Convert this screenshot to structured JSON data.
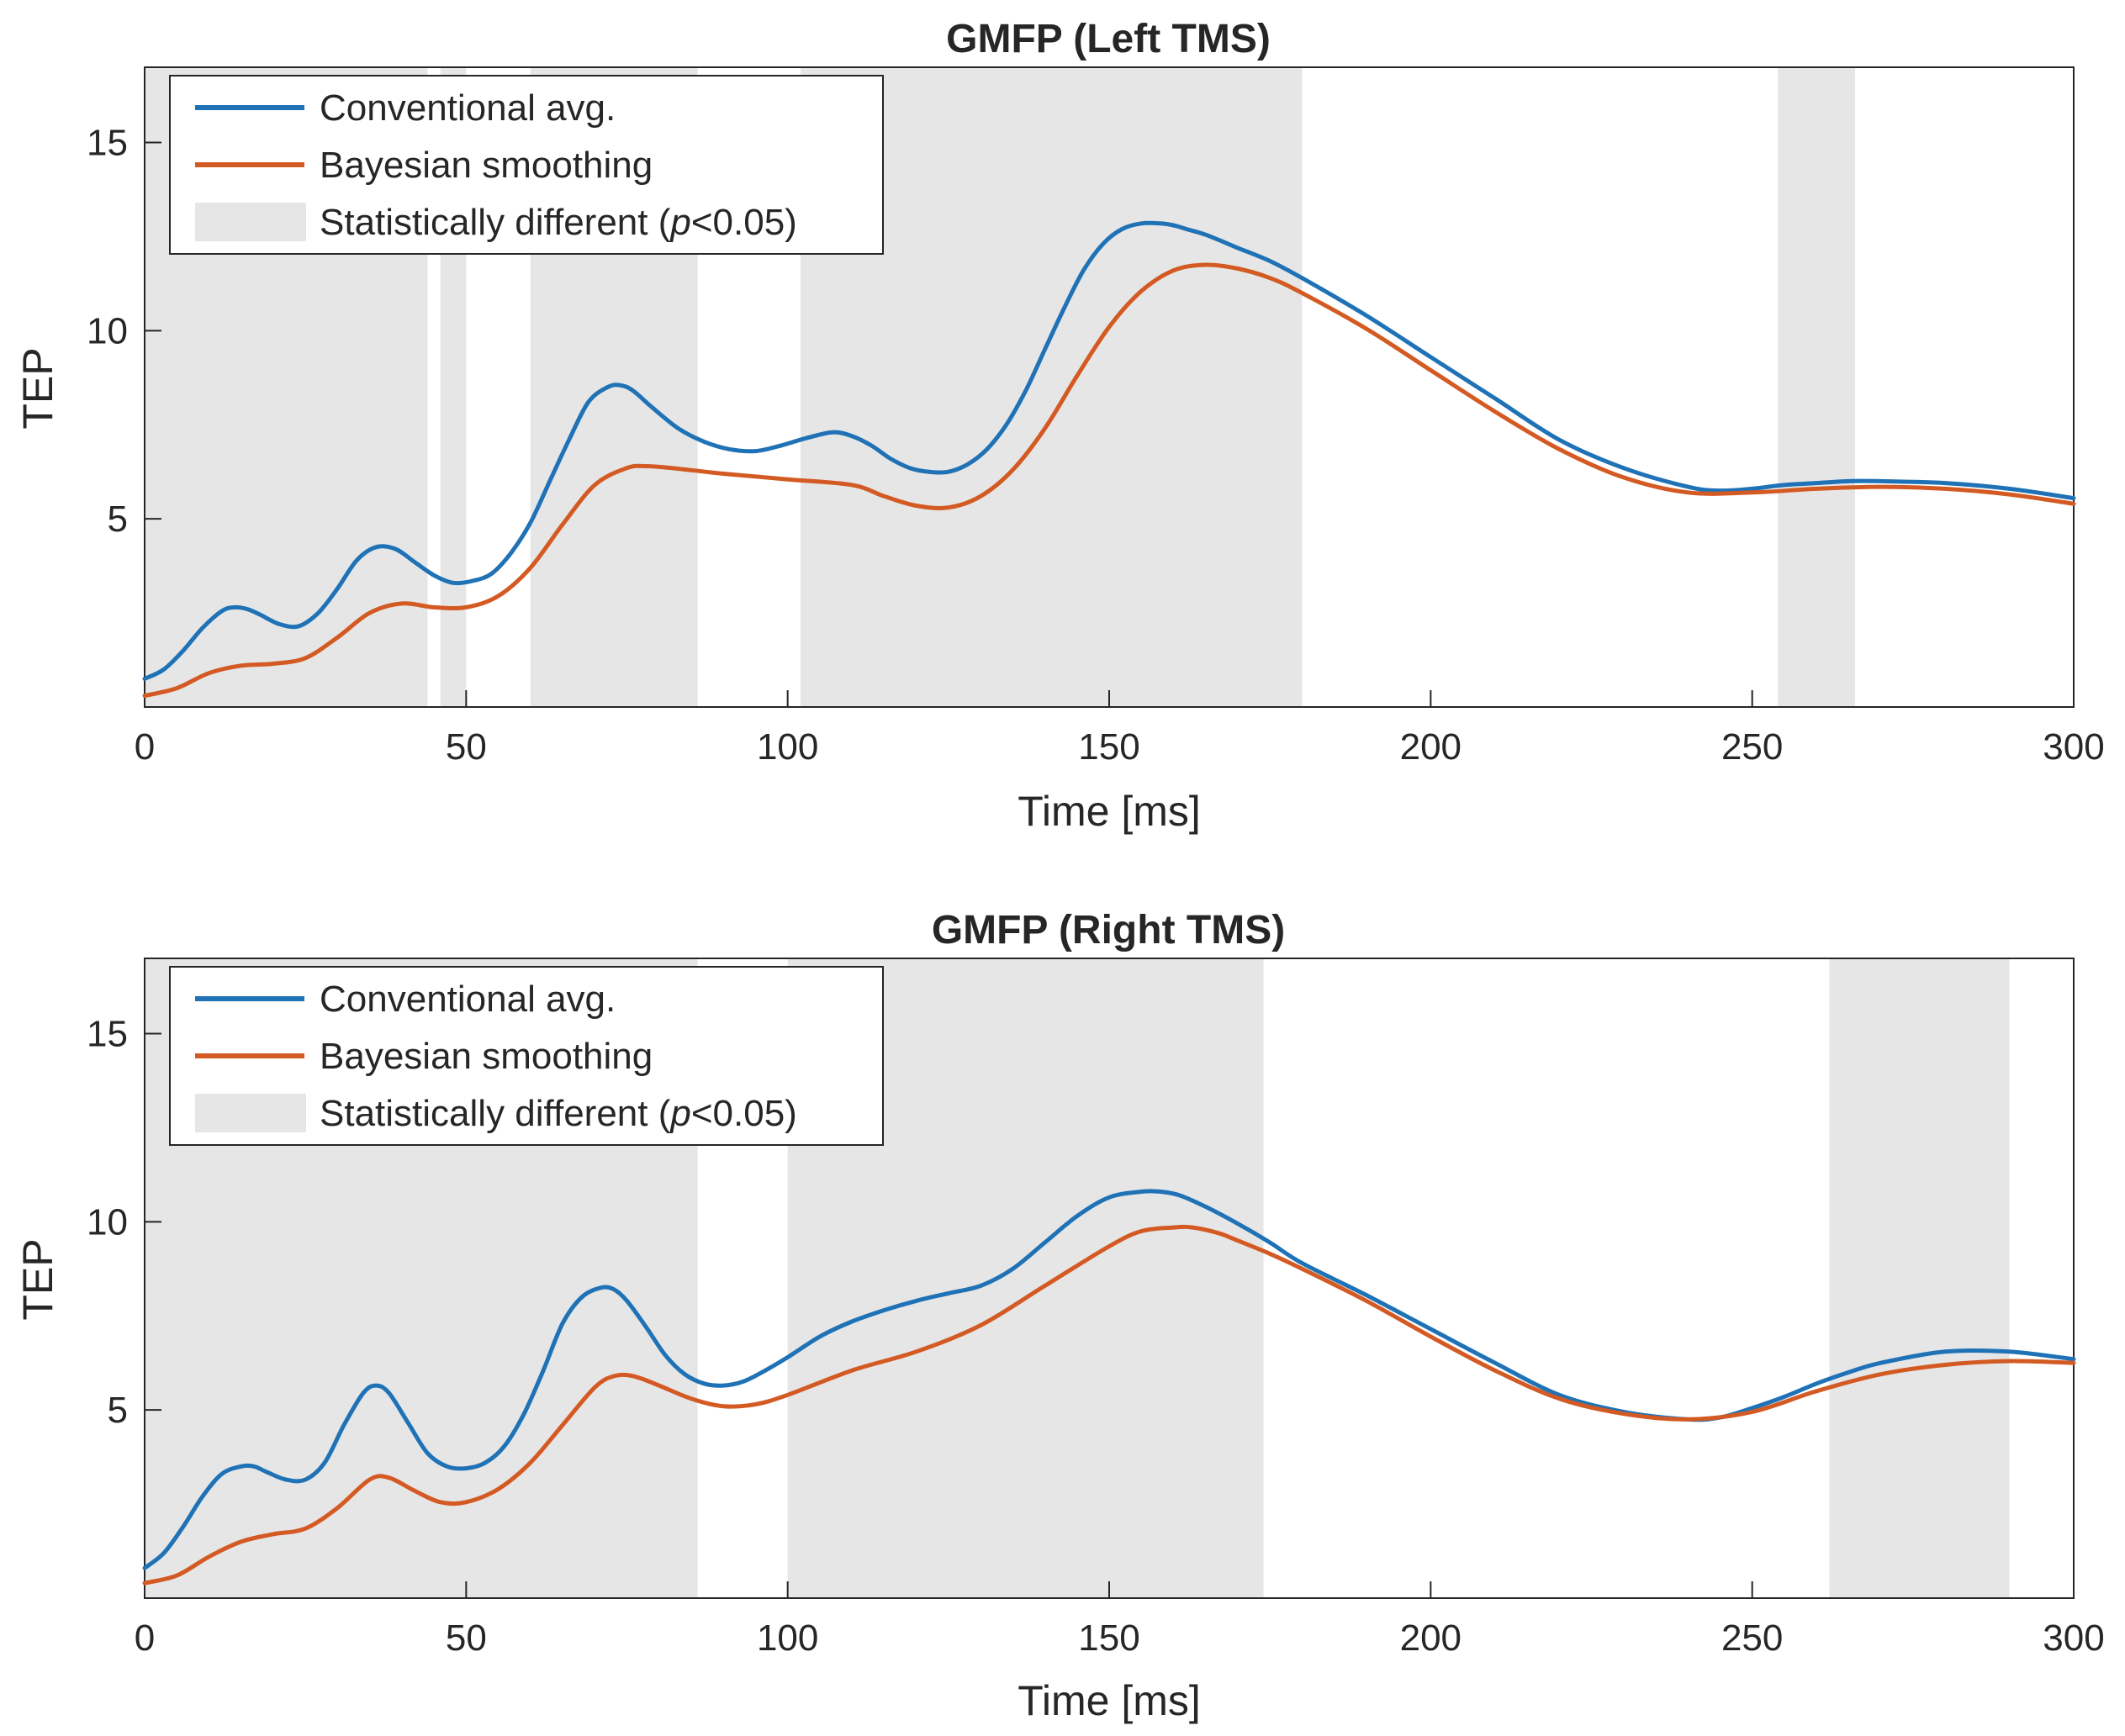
{
  "chart_data": [
    {
      "type": "line",
      "title": "GMFP (Left TMS)",
      "xlabel": "Time [ms]",
      "ylabel": "TEP",
      "xlim": [
        0,
        300
      ],
      "ylim": [
        0,
        17
      ],
      "xticks": [
        "0",
        "50",
        "100",
        "150",
        "200",
        "250",
        "300"
      ],
      "yticks": [
        "5",
        "10",
        "15"
      ],
      "legend": {
        "placement": "top-left",
        "entries": [
          "Conventional avg.",
          "Bayesian smoothing"
        ],
        "shade_label_prefix": "Statistically different (",
        "shade_label_italic": "p",
        "shade_label_suffix": "<0.05)"
      },
      "colors": {
        "conventional": "#1f72b6",
        "bayesian": "#d45a23",
        "shade": "#e6e6e6"
      },
      "significant_intervals": [
        [
          0,
          44
        ],
        [
          46,
          50
        ],
        [
          60,
          86
        ],
        [
          102,
          180
        ],
        [
          254,
          266
        ]
      ],
      "series": [
        {
          "name": "Conventional avg.",
          "x": [
            0,
            3,
            6,
            9,
            12,
            14,
            16,
            18,
            21,
            24,
            27,
            30,
            33,
            36,
            39,
            42,
            45,
            48,
            51,
            54,
            57,
            60,
            63,
            66,
            69,
            72,
            74,
            76,
            79,
            83,
            87,
            91,
            95,
            99,
            103,
            107,
            110,
            113,
            116,
            119,
            122,
            125,
            128,
            131,
            134,
            137,
            140,
            143,
            146,
            149,
            152,
            155,
            158,
            160,
            162,
            165,
            170,
            175,
            180,
            190,
            200,
            210,
            220,
            230,
            240,
            245,
            250,
            255,
            260,
            265,
            270,
            280,
            290,
            300
          ],
          "y": [
            0.75,
            1.0,
            1.5,
            2.1,
            2.55,
            2.65,
            2.6,
            2.45,
            2.2,
            2.15,
            2.5,
            3.15,
            3.9,
            4.25,
            4.2,
            3.85,
            3.5,
            3.3,
            3.35,
            3.55,
            4.1,
            4.9,
            6.0,
            7.1,
            8.1,
            8.5,
            8.55,
            8.4,
            7.95,
            7.4,
            7.05,
            6.85,
            6.8,
            6.95,
            7.15,
            7.3,
            7.2,
            6.95,
            6.6,
            6.35,
            6.25,
            6.25,
            6.45,
            6.85,
            7.5,
            8.4,
            9.5,
            10.6,
            11.6,
            12.3,
            12.7,
            12.85,
            12.85,
            12.8,
            12.7,
            12.55,
            12.2,
            11.85,
            11.4,
            10.4,
            9.3,
            8.2,
            7.1,
            6.35,
            5.85,
            5.75,
            5.8,
            5.9,
            5.95,
            6.0,
            6.0,
            5.95,
            5.8,
            5.55
          ]
        },
        {
          "name": "Bayesian smoothing",
          "x": [
            0,
            5,
            10,
            15,
            20,
            25,
            30,
            35,
            40,
            45,
            50,
            55,
            60,
            65,
            70,
            75,
            78,
            82,
            90,
            100,
            110,
            115,
            120,
            125,
            130,
            135,
            140,
            145,
            150,
            155,
            160,
            165,
            170,
            175,
            180,
            190,
            200,
            210,
            220,
            230,
            240,
            250,
            260,
            270,
            280,
            290,
            300
          ],
          "y": [
            0.3,
            0.5,
            0.9,
            1.1,
            1.15,
            1.3,
            1.85,
            2.5,
            2.75,
            2.65,
            2.65,
            2.95,
            3.7,
            4.85,
            5.9,
            6.35,
            6.4,
            6.35,
            6.2,
            6.05,
            5.9,
            5.6,
            5.35,
            5.3,
            5.6,
            6.3,
            7.4,
            8.8,
            10.1,
            11.05,
            11.6,
            11.75,
            11.65,
            11.4,
            11.0,
            10.05,
            8.95,
            7.85,
            6.85,
            6.1,
            5.7,
            5.7,
            5.8,
            5.85,
            5.8,
            5.65,
            5.4
          ]
        }
      ]
    },
    {
      "type": "line",
      "title": "GMFP (Right TMS)",
      "xlabel": "Time [ms]",
      "ylabel": "TEP",
      "xlim": [
        0,
        300
      ],
      "ylim": [
        0,
        17
      ],
      "xticks": [
        "0",
        "50",
        "100",
        "150",
        "200",
        "250",
        "300"
      ],
      "yticks": [
        "5",
        "10",
        "15"
      ],
      "legend": {
        "placement": "top-left",
        "entries": [
          "Conventional avg.",
          "Bayesian smoothing"
        ],
        "shade_label_prefix": "Statistically different (",
        "shade_label_italic": "p",
        "shade_label_suffix": "<0.05)"
      },
      "colors": {
        "conventional": "#1f72b6",
        "bayesian": "#d45a23",
        "shade": "#e6e6e6"
      },
      "significant_intervals": [
        [
          0,
          86
        ],
        [
          100,
          174
        ],
        [
          262,
          290
        ]
      ],
      "series": [
        {
          "name": "Conventional avg.",
          "x": [
            0,
            3,
            6,
            9,
            12,
            15,
            17,
            19,
            22,
            25,
            28,
            31,
            34,
            36,
            38,
            41,
            44,
            47,
            50,
            53,
            56,
            59,
            62,
            65,
            68,
            71,
            73,
            75,
            78,
            81,
            84,
            87,
            90,
            93,
            96,
            100,
            105,
            110,
            115,
            120,
            125,
            130,
            135,
            140,
            145,
            150,
            155,
            158,
            161,
            165,
            170,
            175,
            180,
            190,
            200,
            210,
            220,
            230,
            240,
            245,
            250,
            255,
            260,
            265,
            270,
            280,
            290,
            300
          ],
          "y": [
            0.8,
            1.2,
            1.9,
            2.7,
            3.3,
            3.5,
            3.5,
            3.35,
            3.15,
            3.15,
            3.6,
            4.6,
            5.45,
            5.65,
            5.45,
            4.65,
            3.85,
            3.5,
            3.45,
            3.6,
            4.05,
            4.9,
            6.05,
            7.3,
            8.0,
            8.25,
            8.2,
            7.9,
            7.2,
            6.45,
            5.95,
            5.7,
            5.65,
            5.75,
            6.0,
            6.4,
            6.95,
            7.35,
            7.65,
            7.9,
            8.1,
            8.3,
            8.75,
            9.45,
            10.15,
            10.65,
            10.8,
            10.8,
            10.7,
            10.4,
            9.95,
            9.45,
            8.9,
            8.05,
            7.15,
            6.25,
            5.4,
            4.95,
            4.75,
            4.8,
            5.05,
            5.35,
            5.7,
            6.0,
            6.25,
            6.55,
            6.55,
            6.35
          ]
        },
        {
          "name": "Bayesian smoothing",
          "x": [
            0,
            5,
            10,
            15,
            20,
            25,
            30,
            35,
            38,
            42,
            46,
            50,
            55,
            60,
            65,
            70,
            73,
            76,
            80,
            85,
            90,
            95,
            100,
            110,
            120,
            130,
            140,
            150,
            155,
            160,
            163,
            167,
            170,
            175,
            180,
            190,
            200,
            210,
            220,
            230,
            240,
            250,
            260,
            270,
            280,
            290,
            300
          ],
          "y": [
            0.4,
            0.6,
            1.1,
            1.5,
            1.7,
            1.85,
            2.4,
            3.15,
            3.2,
            2.85,
            2.55,
            2.55,
            2.9,
            3.6,
            4.6,
            5.6,
            5.9,
            5.9,
            5.65,
            5.3,
            5.1,
            5.15,
            5.4,
            6.05,
            6.55,
            7.25,
            8.3,
            9.35,
            9.75,
            9.85,
            9.85,
            9.7,
            9.5,
            9.15,
            8.75,
            7.9,
            6.95,
            6.05,
            5.3,
            4.9,
            4.75,
            4.95,
            5.5,
            5.95,
            6.2,
            6.3,
            6.25
          ]
        }
      ]
    }
  ]
}
